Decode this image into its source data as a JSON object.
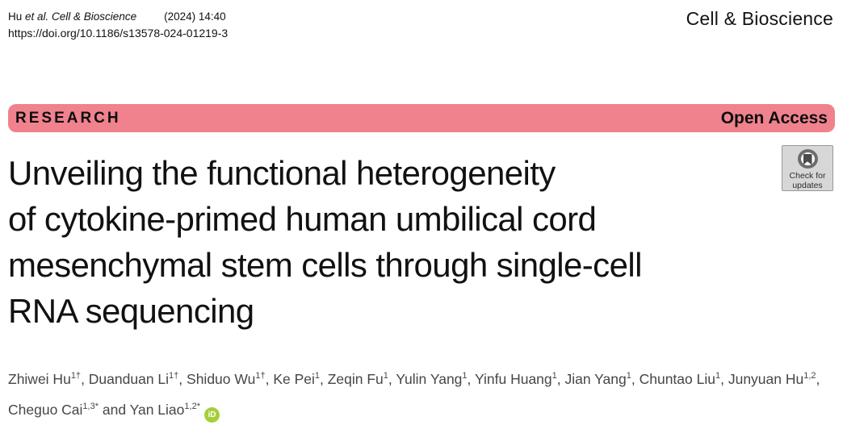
{
  "header": {
    "citation_prefix": "Hu ",
    "citation_italic": "et al. Cell & Bioscience",
    "citation_issue": "(2024) 14:40",
    "doi": "https://doi.org/10.1186/s13578-024-01219-3",
    "journal_name": "Cell & Bioscience"
  },
  "banner": {
    "research_label": "RESEARCH",
    "open_access_label": "Open Access",
    "bg_color": "#f0828d"
  },
  "update_badge": {
    "line1": "Check for",
    "line2": "updates"
  },
  "article": {
    "title_lines": [
      "Unveiling the functional heterogeneity",
      "of cytokine-primed human umbilical cord",
      "mesenchymal stem cells through single-cell",
      "RNA sequencing"
    ]
  },
  "authors": [
    {
      "sep": "",
      "name": "Zhiwei Hu",
      "sup": "1†"
    },
    {
      "sep": ", ",
      "name": "Duanduan Li",
      "sup": "1†"
    },
    {
      "sep": ", ",
      "name": "Shiduo Wu",
      "sup": "1†"
    },
    {
      "sep": ", ",
      "name": "Ke Pei",
      "sup": "1"
    },
    {
      "sep": ", ",
      "name": "Zeqin Fu",
      "sup": "1"
    },
    {
      "sep": ", ",
      "name": "Yulin Yang",
      "sup": "1"
    },
    {
      "sep": ", ",
      "name": "Yinfu Huang",
      "sup": "1"
    },
    {
      "sep": ", ",
      "name": "Jian Yang",
      "sup": "1"
    },
    {
      "sep": ", ",
      "name": "Chuntao Liu",
      "sup": "1"
    },
    {
      "sep": ", ",
      "name": "Junyuan Hu",
      "sup": "1,2"
    },
    {
      "sep": ", ",
      "name": "Cheguo Cai",
      "sup": "1,3*"
    },
    {
      "sep": " and ",
      "name": "Yan Liao",
      "sup": "1,2*",
      "orcid": true
    }
  ],
  "icons": {
    "orcid_label": "iD",
    "orcid_color": "#a6ce39"
  }
}
